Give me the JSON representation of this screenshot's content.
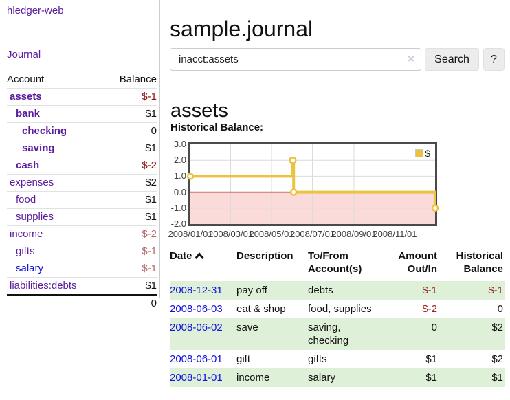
{
  "app": {
    "brand": "hledger-web",
    "nav_journal": "Journal"
  },
  "colors": {
    "link_purple": "#5a1d9e",
    "link_blue": "#1212dd",
    "negative_strong": "#8f1010",
    "negative_soft": "#b36b6b",
    "negative_table": "#9a1d1d",
    "stripe_green": "#dff0d8",
    "chart_line": "#edc240",
    "chart_negative_fill": "#fbdada",
    "chart_zero_line": "#9c0a0a",
    "chart_border": "#4a4a4a"
  },
  "sidebar": {
    "header": {
      "account": "Account",
      "balance": "Balance"
    },
    "rows": [
      {
        "account": "assets",
        "balance": "$-1",
        "depth": 1,
        "bold": true,
        "tone": "neg-strong"
      },
      {
        "account": "bank",
        "balance": "$1",
        "depth": 2,
        "bold": true,
        "tone": "plain"
      },
      {
        "account": "checking",
        "balance": "0",
        "depth": 3,
        "bold": true,
        "tone": "plain"
      },
      {
        "account": "saving",
        "balance": "$1",
        "depth": 3,
        "bold": true,
        "tone": "plain"
      },
      {
        "account": "cash",
        "balance": "$-2",
        "depth": 2,
        "bold": true,
        "tone": "neg-strong"
      },
      {
        "account": "expenses",
        "balance": "$2",
        "depth": 1,
        "bold": false,
        "tone": "plain"
      },
      {
        "account": "food",
        "balance": "$1",
        "depth": 2,
        "bold": false,
        "tone": "plain"
      },
      {
        "account": "supplies",
        "balance": "$1",
        "depth": 2,
        "bold": false,
        "tone": "plain"
      },
      {
        "account": "income",
        "balance": "$-2",
        "depth": 1,
        "bold": false,
        "tone": "neg-soft"
      },
      {
        "account": "gifts",
        "balance": "$-1",
        "depth": 2,
        "bold": false,
        "tone": "neg-soft"
      },
      {
        "account": "salary",
        "balance": "$-1",
        "depth": 2,
        "bold": false,
        "tone": "neg-soft"
      },
      {
        "account": "liabilities:debts",
        "balance": "$1",
        "depth": 1,
        "bold": false,
        "tone": "plain"
      }
    ],
    "total": "0"
  },
  "main": {
    "title": "sample.journal",
    "search": {
      "value": "inacct:assets",
      "clear_glyph": "×",
      "button": "Search",
      "help_button": "?"
    },
    "account_heading": "assets",
    "chart_heading": "Historical Balance:"
  },
  "chart_data": {
    "type": "line",
    "steps": true,
    "title": "Historical Balance:",
    "xlabel": "",
    "ylabel": "",
    "legend": {
      "position": "top-right"
    },
    "series": [
      {
        "name": "$",
        "color": "#edc240",
        "points": [
          [
            "2008-01-01",
            1
          ],
          [
            "2008-06-01",
            2
          ],
          [
            "2008-06-02",
            2
          ],
          [
            "2008-06-03",
            0
          ],
          [
            "2008-12-31",
            -1
          ]
        ]
      }
    ],
    "xrange": [
      "2008-01-01",
      "2008-12-31"
    ],
    "ylim": [
      -2,
      3
    ],
    "ytick_values": [
      3,
      2,
      1,
      0,
      -1,
      -2
    ],
    "ytick_labels": [
      "3.0",
      "2.0",
      "1.0",
      "0.0",
      "-1.0",
      "-2.0"
    ],
    "xtick_dates": [
      "2008-01-01",
      "2008-03-01",
      "2008-05-01",
      "2008-07-01",
      "2008-09-01",
      "2008-11-01"
    ],
    "xtick_labels": [
      "2008/01/01",
      "2008/03/01",
      "2008/05/01",
      "2008/07/01",
      "2008/09/01",
      "2008/11/01"
    ],
    "grid": true,
    "negative_region_shaded": true
  },
  "register": {
    "headers": {
      "date": "Date",
      "description": "Description",
      "accounts": "To/From Account(s)",
      "amount": "Amount Out/In",
      "balance": "Historical Balance"
    },
    "sort": "ascending",
    "rows": [
      {
        "date": "2008-12-31",
        "description": "pay off",
        "accounts": "debts",
        "amount": "$-1",
        "balance": "$-1"
      },
      {
        "date": "2008-06-03",
        "description": "eat & shop",
        "accounts": "food, supplies",
        "amount": "$-2",
        "balance": "0"
      },
      {
        "date": "2008-06-02",
        "description": "save",
        "accounts": "saving, checking",
        "amount": "0",
        "balance": "$2"
      },
      {
        "date": "2008-06-01",
        "description": "gift",
        "accounts": "gifts",
        "amount": "$1",
        "balance": "$2"
      },
      {
        "date": "2008-01-01",
        "description": "income",
        "accounts": "salary",
        "amount": "$1",
        "balance": "$1"
      }
    ]
  }
}
